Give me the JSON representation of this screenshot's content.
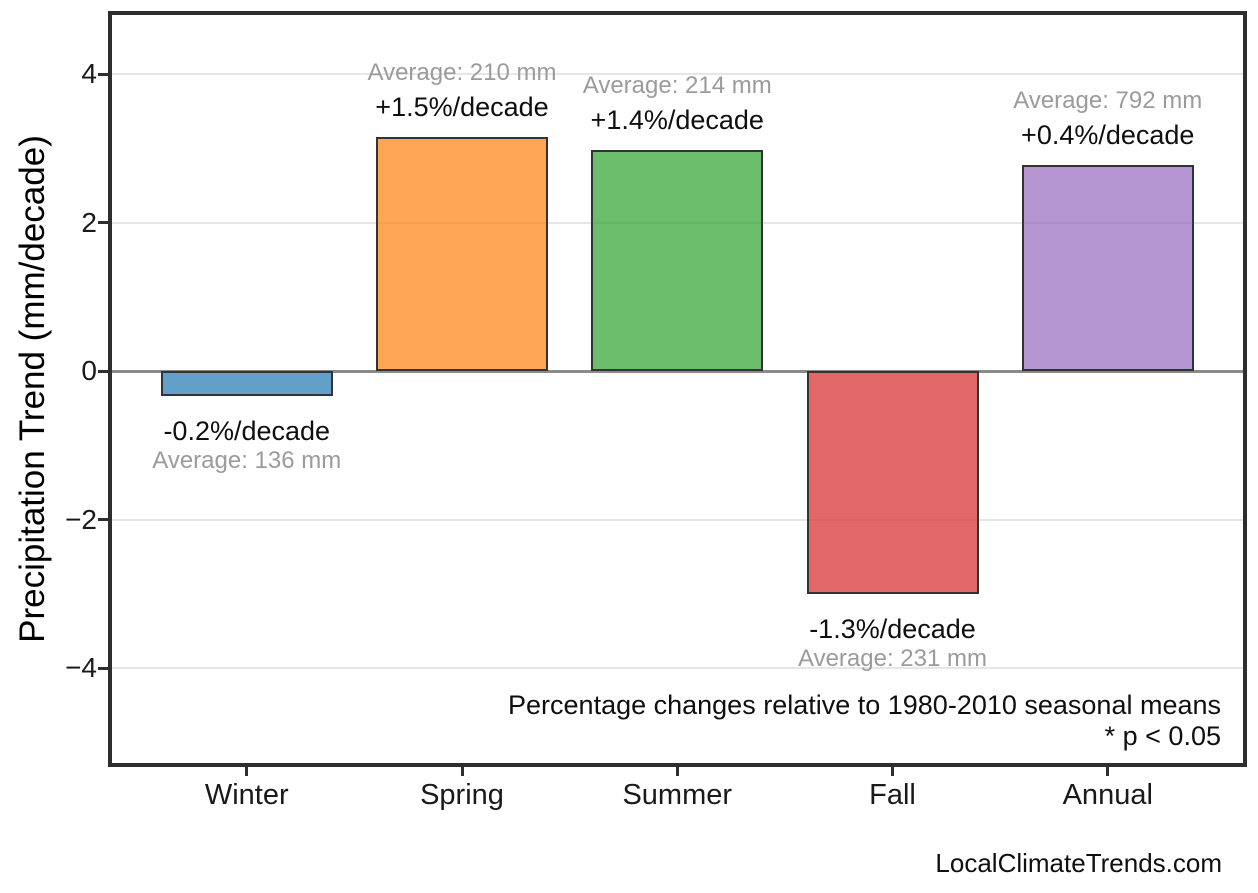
{
  "watermark": "LocalClimateTrends.com",
  "chart_data": {
    "type": "bar",
    "title": "",
    "xlabel": "",
    "ylabel": "Precipitation Trend (mm/decade)",
    "categories": [
      "Winter",
      "Spring",
      "Summer",
      "Fall",
      "Annual"
    ],
    "values": [
      -0.33,
      3.15,
      2.97,
      -3.0,
      2.77
    ],
    "values_unit": "mm/decade",
    "bars": [
      {
        "category": "Winter",
        "value": -0.33,
        "trend_label": "-0.2%/decade",
        "average_label": "Average: 136 mm",
        "color": "#1f77b4"
      },
      {
        "category": "Spring",
        "value": 3.15,
        "trend_label": "+1.5%/decade",
        "average_label": "Average: 210 mm",
        "color": "#ff7f0e"
      },
      {
        "category": "Summer",
        "value": 2.97,
        "trend_label": "+1.4%/decade",
        "average_label": "Average: 214 mm",
        "color": "#2ca02c"
      },
      {
        "category": "Fall",
        "value": -3.0,
        "trend_label": "-1.3%/decade",
        "average_label": "Average: 231 mm",
        "color": "#d62728"
      },
      {
        "category": "Annual",
        "value": 2.77,
        "trend_label": "+0.4%/decade",
        "average_label": "Average: 792 mm",
        "color": "#9467bd"
      }
    ],
    "bar_alpha": 0.7,
    "y_axis": {
      "ticks": [
        {
          "value": 4,
          "label": "4"
        },
        {
          "value": 2,
          "label": "2"
        },
        {
          "value": 0,
          "label": "0"
        },
        {
          "value": -2,
          "label": "−2"
        },
        {
          "value": -4,
          "label": "−4"
        }
      ],
      "range": [
        -5.3,
        4.8
      ]
    },
    "grid": {
      "horizontal": true,
      "vertical": false,
      "color": "#e6e6e6"
    },
    "zero_line_color": "#8a8a8a",
    "frame_color": "#2e2e2e",
    "bar_edge_color": "#333333",
    "trend_text_color": "#0f0f0f",
    "average_text_color": "#9b9b9b",
    "legend": "none",
    "annotations": [
      "Percentage changes relative to 1980-2010 seasonal means",
      "* p < 0.05"
    ]
  }
}
